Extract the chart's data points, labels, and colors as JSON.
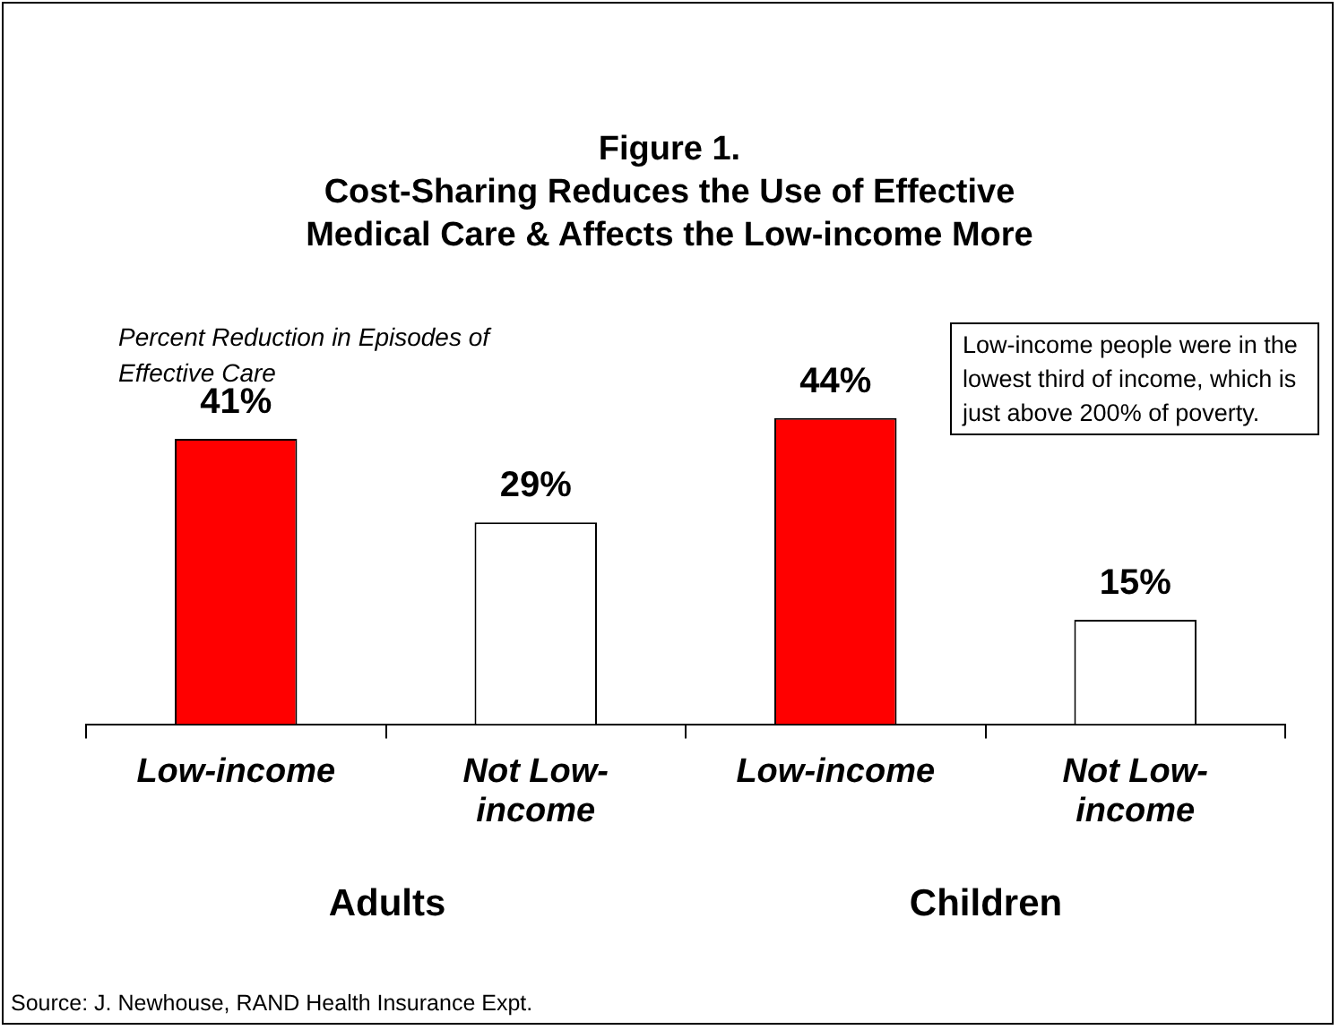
{
  "chart_data": {
    "type": "bar",
    "title": "Figure 1.\nCost-Sharing Reduces the Use of Effective\nMedical Care & Affects the Low-income More",
    "ylabel": "Percent Reduction in Episodes of Effective Care",
    "categories": [
      "Low-income",
      "Not Low-income",
      "Low-income",
      "Not Low-income"
    ],
    "values": [
      41,
      29,
      44,
      15
    ],
    "colors": [
      "#ff0000",
      "#ffffff",
      "#ff0000",
      "#ffffff"
    ],
    "data_labels": true,
    "value_labels": [
      "41%",
      "29%",
      "44%",
      "15%"
    ],
    "annotations": [
      "Low-income people were in the lowest third of income, which is just above 200% of poverty.",
      "Adults",
      "Children",
      "Source: J. Newhouse, RAND Health Insurance Expt."
    ]
  }
}
